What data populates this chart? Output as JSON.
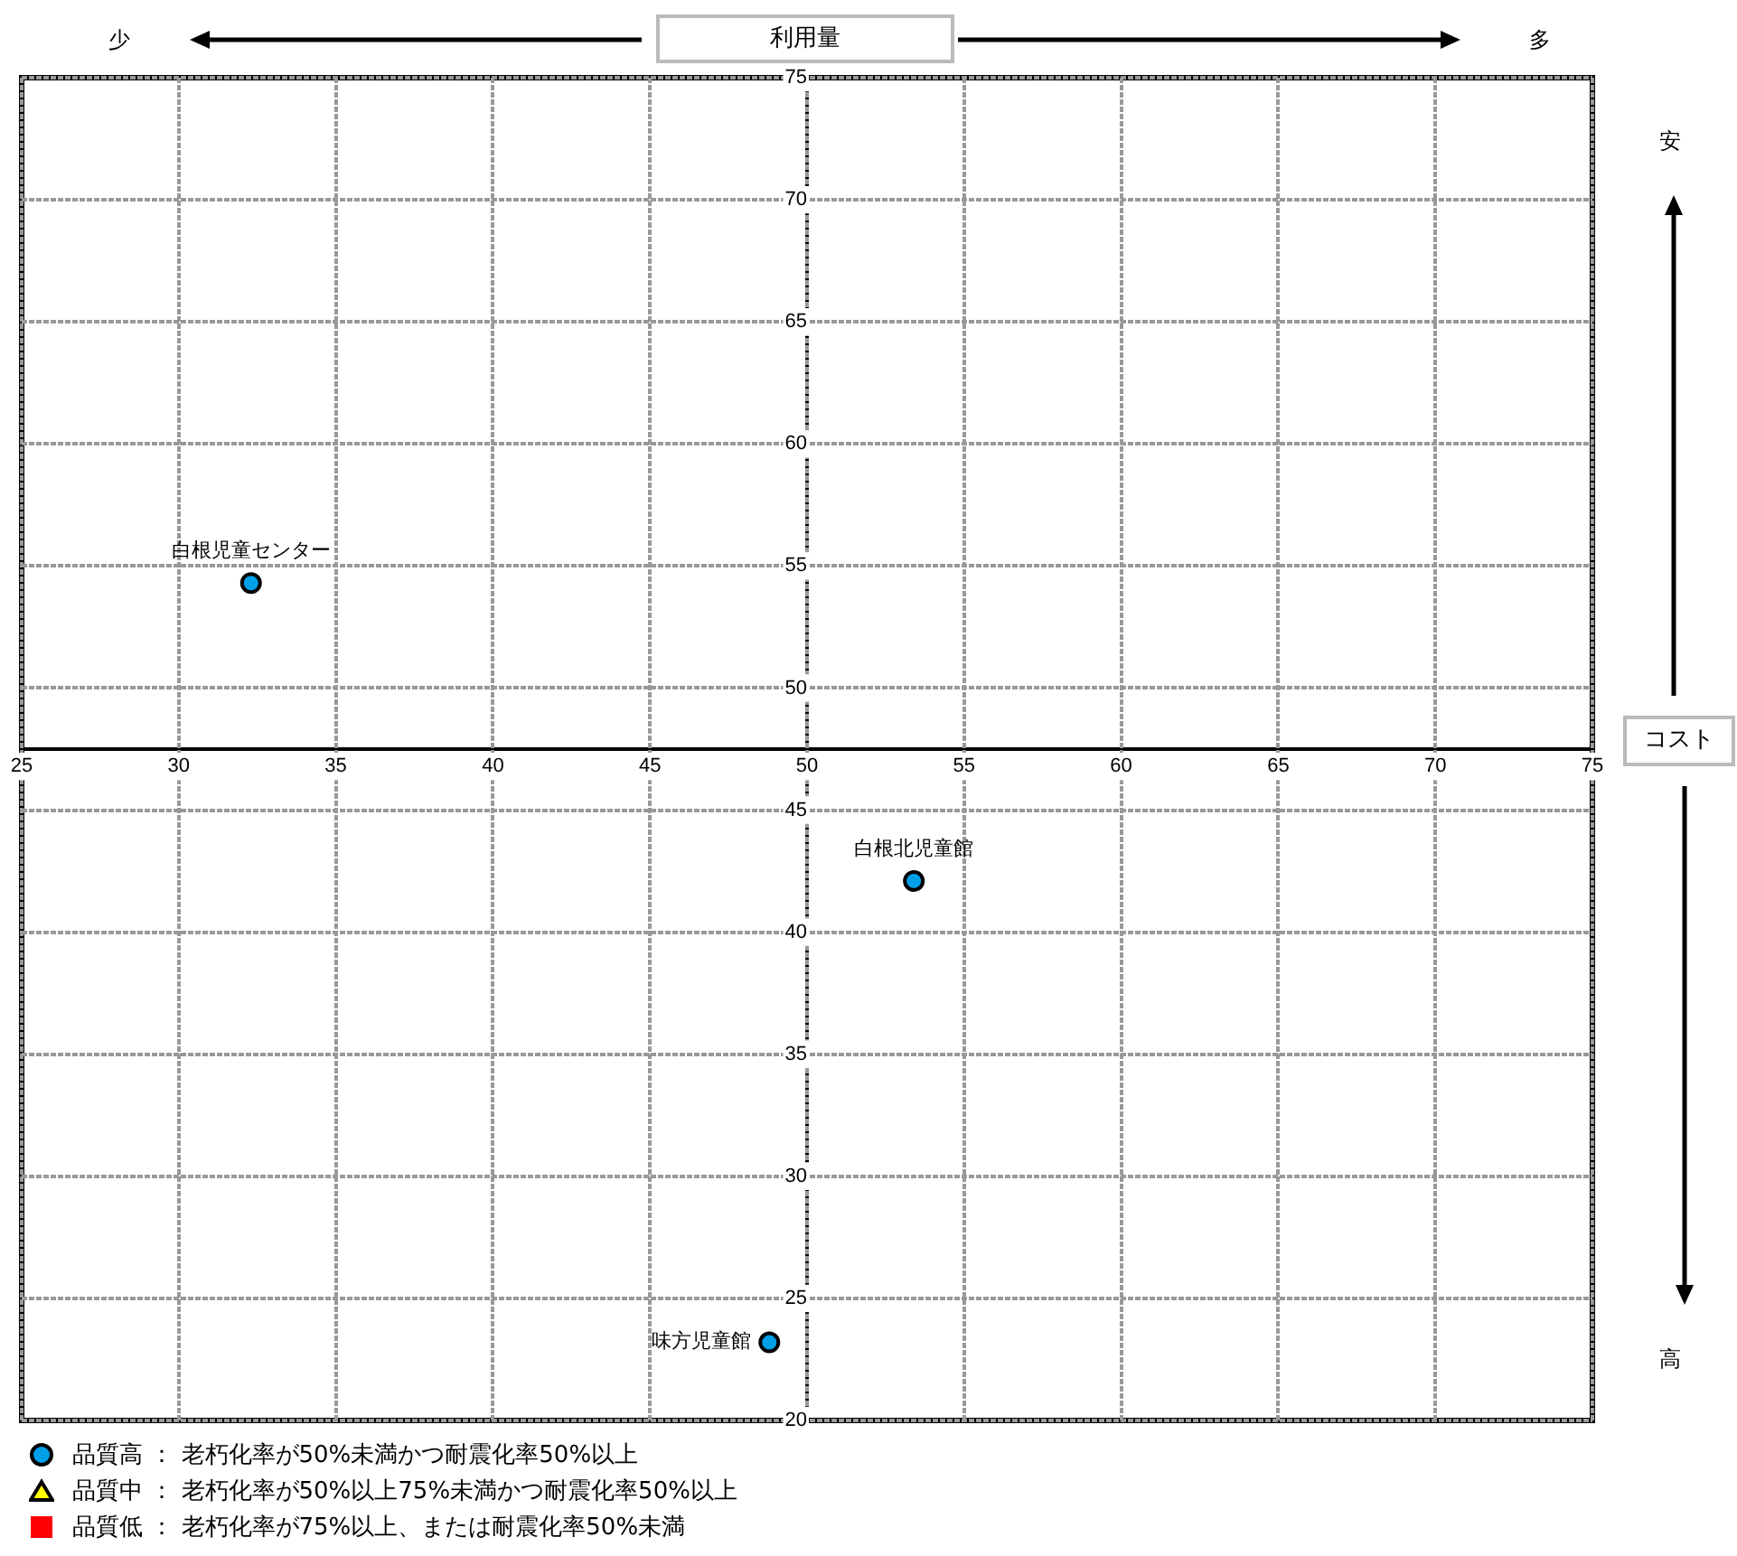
{
  "chart_data": {
    "type": "scatter",
    "xlabel": "利用量",
    "ylabel": "コスト",
    "xlim": [
      25,
      75
    ],
    "xticks": [
      25,
      30,
      35,
      40,
      45,
      50,
      55,
      60,
      65,
      70,
      75
    ],
    "ylim": [
      20,
      75
    ],
    "yticks": [
      20,
      25,
      30,
      35,
      40,
      45,
      50,
      55,
      60,
      65,
      70,
      75
    ],
    "grid": true,
    "legend": "bottom left",
    "series": [
      {
        "name": "品質高 ： 老朽化率が50%未満かつ耐震化率50%以上",
        "color": "#00a0e9",
        "marker": "circle",
        "x": [
          32.3,
          53.4,
          48.8
        ],
        "values": [
          54.3,
          42.1,
          23.2
        ]
      },
      {
        "name": "品質中 ： 老朽化率が50%以上75%未満かつ耐震化率50%以上",
        "color": "#ffff00",
        "marker": "triangle"
      },
      {
        "name": "品質低 ： 老朽化率が75%以上、または耐震化率50%未満",
        "color": "#ff0000",
        "marker": "square"
      }
    ],
    "annotations": [
      {
        "text": "白根児童センター",
        "x": 32.3,
        "y": 54.3
      },
      {
        "text": "白根北児童館",
        "x": 53.4,
        "y": 42.1
      },
      {
        "text": "味方児童館",
        "x": 48.8,
        "y": 23.2
      },
      "少",
      "多",
      "安",
      "高"
    ]
  }
}
